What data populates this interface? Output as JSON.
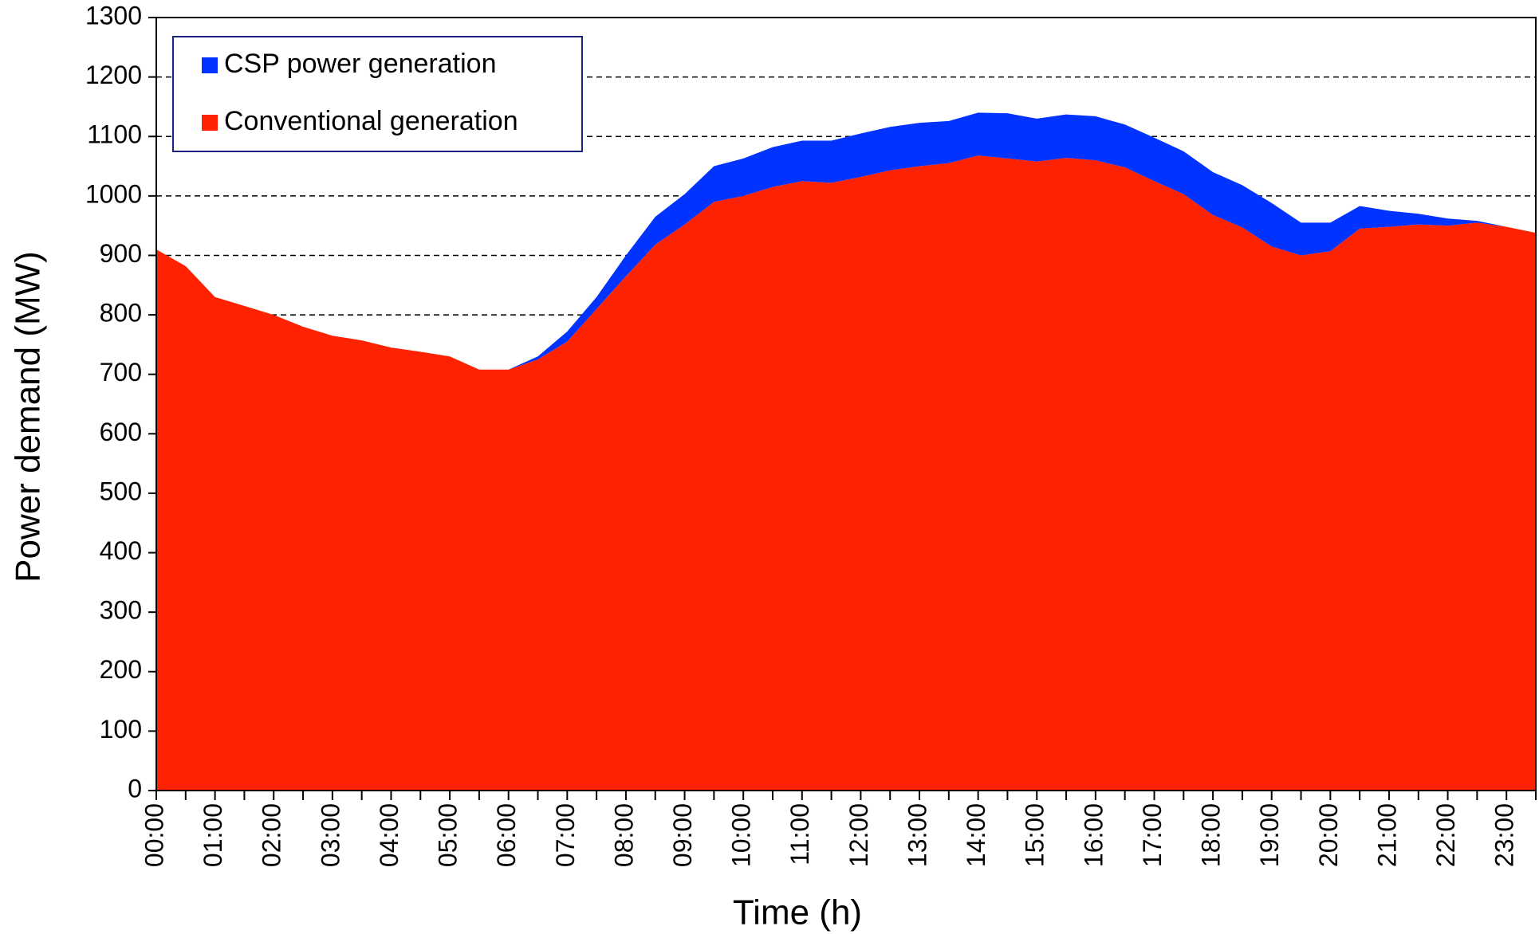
{
  "chart_data": {
    "type": "stacked-area",
    "x_label": "Time (h)",
    "y_label": "Power demand (MW)",
    "categories": [
      "00:00",
      null,
      "01:00",
      null,
      "02:00",
      null,
      "03:00",
      null,
      "04:00",
      null,
      "05:00",
      null,
      "06:00",
      null,
      "07:00",
      null,
      "08:00",
      null,
      "09:00",
      null,
      "10:00",
      null,
      "11:00",
      null,
      "12:00",
      null,
      "13:00",
      null,
      "14:00",
      null,
      "15:00",
      null,
      "16:00",
      null,
      "17:00",
      null,
      "18:00",
      null,
      "19:00",
      null,
      "20:00",
      null,
      "21:00",
      null,
      "22:00",
      null,
      "23:00",
      null
    ],
    "series": [
      {
        "name": "Conventional generation",
        "color": "#ff2200",
        "values": [
          910,
          882,
          830,
          815,
          800,
          780,
          765,
          757,
          745,
          738,
          730,
          708,
          708,
          725,
          755,
          810,
          865,
          918,
          952,
          990,
          1000,
          1015,
          1025,
          1022,
          1032,
          1043,
          1050,
          1055,
          1068,
          1063,
          1058,
          1064,
          1060,
          1048,
          1025,
          1003,
          968,
          947,
          915,
          900,
          907,
          945,
          948,
          952,
          950,
          955,
          948,
          938
        ]
      },
      {
        "name": "CSP power generation",
        "color": "#0033ff",
        "values": [
          0,
          0,
          0,
          0,
          0,
          0,
          0,
          0,
          0,
          0,
          0,
          0,
          0,
          5,
          17,
          20,
          35,
          47,
          51,
          60,
          63,
          67,
          68,
          71,
          73,
          73,
          73,
          71,
          72,
          76,
          72,
          73,
          74,
          72,
          73,
          72,
          72,
          71,
          73,
          55,
          48,
          38,
          27,
          18,
          12,
          3,
          0,
          0
        ]
      }
    ],
    "ylim": [
      0,
      1300
    ],
    "yticks": [
      0,
      100,
      200,
      300,
      400,
      500,
      600,
      700,
      800,
      900,
      1000,
      1100,
      1200,
      1300
    ],
    "grid": true,
    "legend": "upper left"
  }
}
